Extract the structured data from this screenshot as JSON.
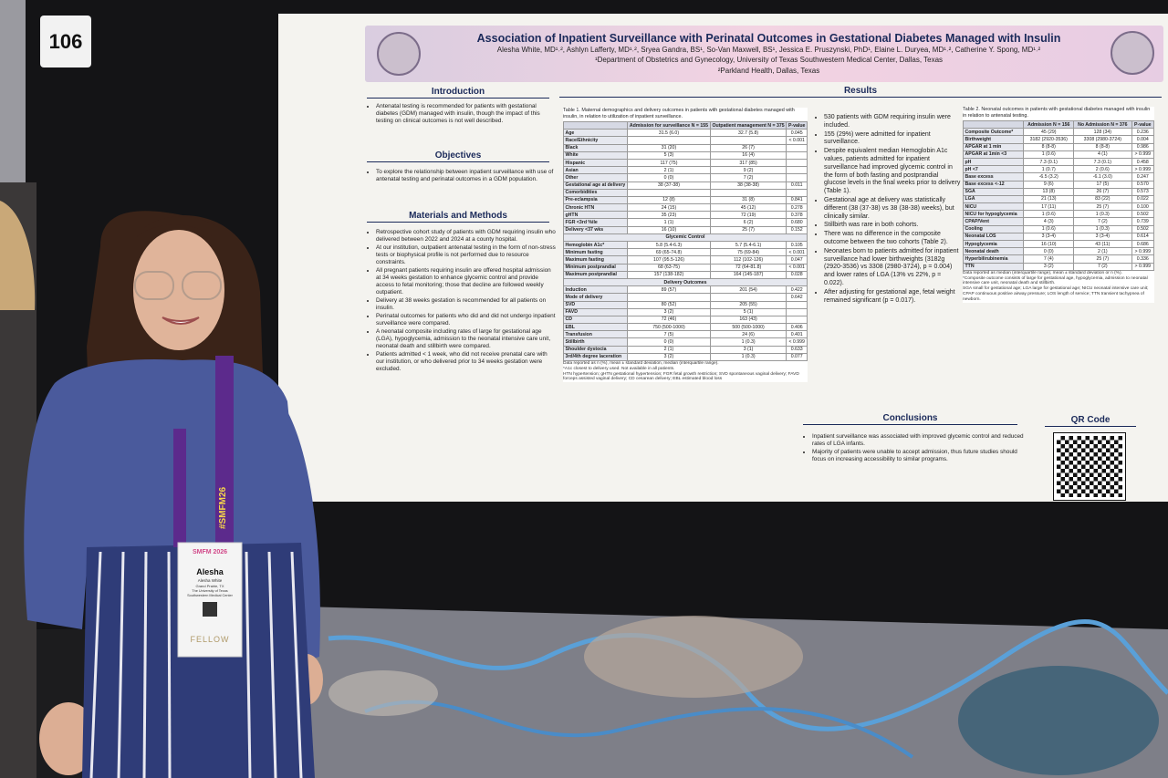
{
  "board_number": "106",
  "poster": {
    "title": "Association of Inpatient Surveillance with Perinatal Outcomes in Gestational Diabetes Managed with Insulin",
    "authors": "Alesha White, MD¹˒², Ashlyn Lafferty, MD¹˒², Sryea Gandra, BS¹, So-Van Maxwell, BS¹, Jessica E. Pruszynski, PhD¹, Elaine L. Duryea, MD¹˒², Catherine Y. Spong, MD¹˒²",
    "affiliations": [
      "¹Department of Obstetrics and Gynecology, University of Texas Southwestern Medical Center, Dallas, Texas",
      "²Parkland Health, Dallas, Texas"
    ],
    "introduction": {
      "heading": "Introduction",
      "bullets": [
        "Antenatal testing is recommended for patients with gestational diabetes (GDM) managed with insulin, though the impact of this testing on clinical outcomes is not well described."
      ]
    },
    "objectives": {
      "heading": "Objectives",
      "bullets": [
        "To explore the relationship between inpatient surveillance with use of antenatal testing and perinatal outcomes in a GDM population."
      ]
    },
    "methods": {
      "heading": "Materials and Methods",
      "bullets": [
        "Retrospective cohort study of patients with GDM requiring insulin who delivered between 2022 and 2024 at a county hospital.",
        "At our institution, outpatient antenatal testing in the form of non-stress tests or biophysical profile is not performed due to resource constraints.",
        "All pregnant patients requiring insulin are offered hospital admission at 34 weeks gestation to enhance glycemic control and provide access to fetal monitoring; those that decline are followed weekly outpatient.",
        "Delivery at 38 weeks gestation is recommended for all patients on insulin.",
        "Perinatal outcomes for patients who did and did not undergo inpatient surveillance were compared.",
        "A neonatal composite including rates of large for gestational age (LGA), hypoglycemia, admission to the neonatal intensive care unit, neonatal death and stillbirth were compared.",
        "Patients admitted < 1 week, who did not receive prenatal care with our institution, or who delivered prior to 34 weeks gestation were excluded."
      ]
    },
    "results_heading": "Results",
    "table1": {
      "caption": "Table 1. Maternal demographics and delivery outcomes in patients with gestational diabetes managed with insulin, in relation to utilization of inpatient surveillance.",
      "columns": [
        "Admission for surveillance N = 155",
        "Outpatient management N = 375",
        "P-value"
      ],
      "rows": [
        [
          "Age",
          "31.5 (6.0)",
          "32.7 (5.8)",
          "0.045"
        ],
        [
          "Race/Ethnicity",
          null,
          null,
          "< 0.001"
        ],
        [
          "Black",
          "31 (20)",
          "26 (7)",
          null
        ],
        [
          "White",
          "5 (3)",
          "16 (4)",
          null
        ],
        [
          "Hispanic",
          "117 (75)",
          "317 (85)",
          null
        ],
        [
          "Asian",
          "2 (1)",
          "9 (2)",
          null
        ],
        [
          "Other",
          "0 (0)",
          "7 (2)",
          null
        ],
        [
          "Gestational age at delivery",
          "38 (37-38)",
          "38 (38-38)",
          "0.011"
        ],
        [
          "Comorbidities",
          null,
          null,
          null
        ],
        [
          "Pre-eclampsia",
          "12 (8)",
          "31 (8)",
          "0.841"
        ],
        [
          "Chronic HTN",
          "24 (15)",
          "45 (12)",
          "0.278"
        ],
        [
          "gHTN",
          "35 (23)",
          "72 (19)",
          "0.378"
        ],
        [
          "FGR <3rd %ile",
          "1 (1)",
          "6 (2)",
          "0.680"
        ],
        [
          "Delivery <37 wks",
          "16 (10)",
          "25 (7)",
          "0.152"
        ],
        [
          "Glycemic Control"
        ],
        [
          "Hemoglobin A1c*",
          "5.8 (5.4-6.3)",
          "5.7 (5.4-6.1)",
          "0.105"
        ],
        [
          "Minimum fasting",
          "69 (65-74.8)",
          "75 (69-84)",
          "< 0.001"
        ],
        [
          "Maximum fasting",
          "107 (95.5-126)",
          "112 (102-126)",
          "0.047"
        ],
        [
          "Minimum postprandial",
          "68 (63-75)",
          "72 (64-81.8)",
          "< 0.001"
        ],
        [
          "Maximum postprandial",
          "157 (138-182)",
          "164 (145-187)",
          "0.028"
        ],
        [
          "Delivery Outcomes"
        ],
        [
          "Induction",
          "89 (57)",
          "201 (54)",
          "0.422"
        ],
        [
          "Mode of delivery",
          null,
          null,
          "0.642"
        ],
        [
          "SVD",
          "80 (52)",
          "205 (55)",
          null
        ],
        [
          "FAVD",
          "3 (2)",
          "5 (1)",
          null
        ],
        [
          "CD",
          "72 (46)",
          "163 (43)",
          null
        ],
        [
          "EBL",
          "750 (500-1000)",
          "500 (500-1000)",
          "0.406"
        ],
        [
          "Transfusion",
          "7 (5)",
          "24 (6)",
          "0.401"
        ],
        [
          "Stillbirth",
          "0 (0)",
          "1 (0.3)",
          "< 0.999"
        ],
        [
          "Shoulder dystocia",
          "2 (1)",
          "3 (1)",
          "0.633"
        ],
        [
          "3rd/4th degree laceration",
          "3 (2)",
          "1 (0.3)",
          "0.077"
        ]
      ],
      "notes": [
        "Data reported as n (%), mean ± standard deviation, median (interquartile range).",
        "*A1c closest to delivery used. Not available in all patients.",
        "HTN hypertension; gHTN gestational hypertension; FGR fetal growth restriction; SVD spontaneous vaginal delivery; FAVD forceps assisted vaginal delivery; CD cesarean delivery; EBL estimated blood loss"
      ]
    },
    "results_bullets": [
      "530 patients with GDM requiring insulin were included.",
      "155 (29%) were admitted for inpatient surveillance.",
      "Despite equivalent median Hemoglobin A1c values, patients admitted for inpatient surveillance had improved glycemic control in the form of both fasting and postprandial glucose levels in the final weeks prior to delivery (Table 1).",
      "Gestational age at delivery was statistically different (38 (37-38) vs 38 (38-38) weeks), but clinically similar.",
      "Stillbirth was rare in both cohorts.",
      "There was no difference in the composite outcome between the two cohorts (Table 2).",
      "Neonates born to patients admitted for inpatient surveillance had lower birthweights (3182g (2920-3536) vs 3308 (2980-3724), p = 0.004) and lower rates of LGA (13% vs 22%, p = 0.022).",
      "After adjusting for gestational age, fetal weight remained significant (p = 0.017)."
    ],
    "table2": {
      "caption": "Table 2. Neonatal outcomes in patients with gestational diabetes managed with insulin in relation to antenatal testing.",
      "columns": [
        "Admission N = 156",
        "No Admission N = 376",
        "P-value"
      ],
      "rows": [
        [
          "Composite Outcome*",
          "45 (29)",
          "128 (34)",
          "0.236"
        ],
        [
          "Birthweight",
          "3182 (2920-3536)",
          "3308 (2980-3724)",
          "0.004"
        ],
        [
          "APGAR at 1 min",
          "8 (8-8)",
          "8 (8-8)",
          "0.986"
        ],
        [
          "APGAR at 1min <3",
          "1 (0.6)",
          "4 (1)",
          "> 0.999"
        ],
        [
          "pH",
          "7.3 (0.1)",
          "7.3 (0.1)",
          "0.458"
        ],
        [
          "pH <7",
          "1 (0.7)",
          "2 (0.6)",
          "> 0.999"
        ],
        [
          "Base excess",
          "-6.5 (3.2)",
          "-6.1 (3.0)",
          "0.247"
        ],
        [
          "Base excess <-12",
          "9 (6)",
          "17 (5)",
          "0.570"
        ],
        [
          "SGA",
          "13 (8)",
          "26 (7)",
          "0.573"
        ],
        [
          "LGA",
          "21 (13)",
          "83 (22)",
          "0.022"
        ],
        [
          "NICU",
          "17 (11)",
          "25 (7)",
          "0.100"
        ],
        [
          "NICU for hypoglycemia",
          "1 (0.6)",
          "1 (0.3)",
          "0.502"
        ],
        [
          "CPAP/Vent",
          "4 (3)",
          "7 (2)",
          "0.739"
        ],
        [
          "Cooling",
          "1 (0.6)",
          "1 (0.3)",
          "0.502"
        ],
        [
          "Neonatal LOS",
          "3 (3-4)",
          "3 (3-4)",
          "0.614"
        ],
        [
          "Hypoglycemia",
          "16 (10)",
          "43 (11)",
          "0.686"
        ],
        [
          "Neonatal death",
          "0 (0)",
          "2 (1)",
          "> 0.999"
        ],
        [
          "Hyperbilirubinemia",
          "7 (4)",
          "25 (7)",
          "0.336"
        ],
        [
          "TTN",
          "3 (2)",
          "7 (2)",
          "> 0.999"
        ]
      ],
      "notes": [
        "Data reported as median (interquartile range), mean ± standard deviation or n (%).",
        "*Composite outcome consists of large for gestational age, hypoglycemia, admission to neonatal intensive care unit, neonatal death and stillbirth.",
        "SGA small for gestational age; LGA large for gestational age; NICU neonatal intensive care unit; CPAP continuous positive airway pressure; LOS length of service; TTN transient tachypnea of newborn."
      ]
    },
    "conclusions": {
      "heading": "Conclusions",
      "bullets": [
        "Inpatient surveillance was associated with improved glycemic control and reduced rates of LGA infants.",
        "Majority of patients were unable to accept admission, thus future studies should focus on increasing accessibility to similar programs."
      ]
    },
    "qr_heading": "QR Code"
  },
  "badge": {
    "lanyard": "#SMFM26",
    "event": "SMFM 2026",
    "first_name": "Alesha",
    "full_name": "Alesha White",
    "location": "Grand Prairie, TX",
    "institution": "The University of Texas Southwestern Medical Center",
    "ribbon": "FELLOW"
  }
}
